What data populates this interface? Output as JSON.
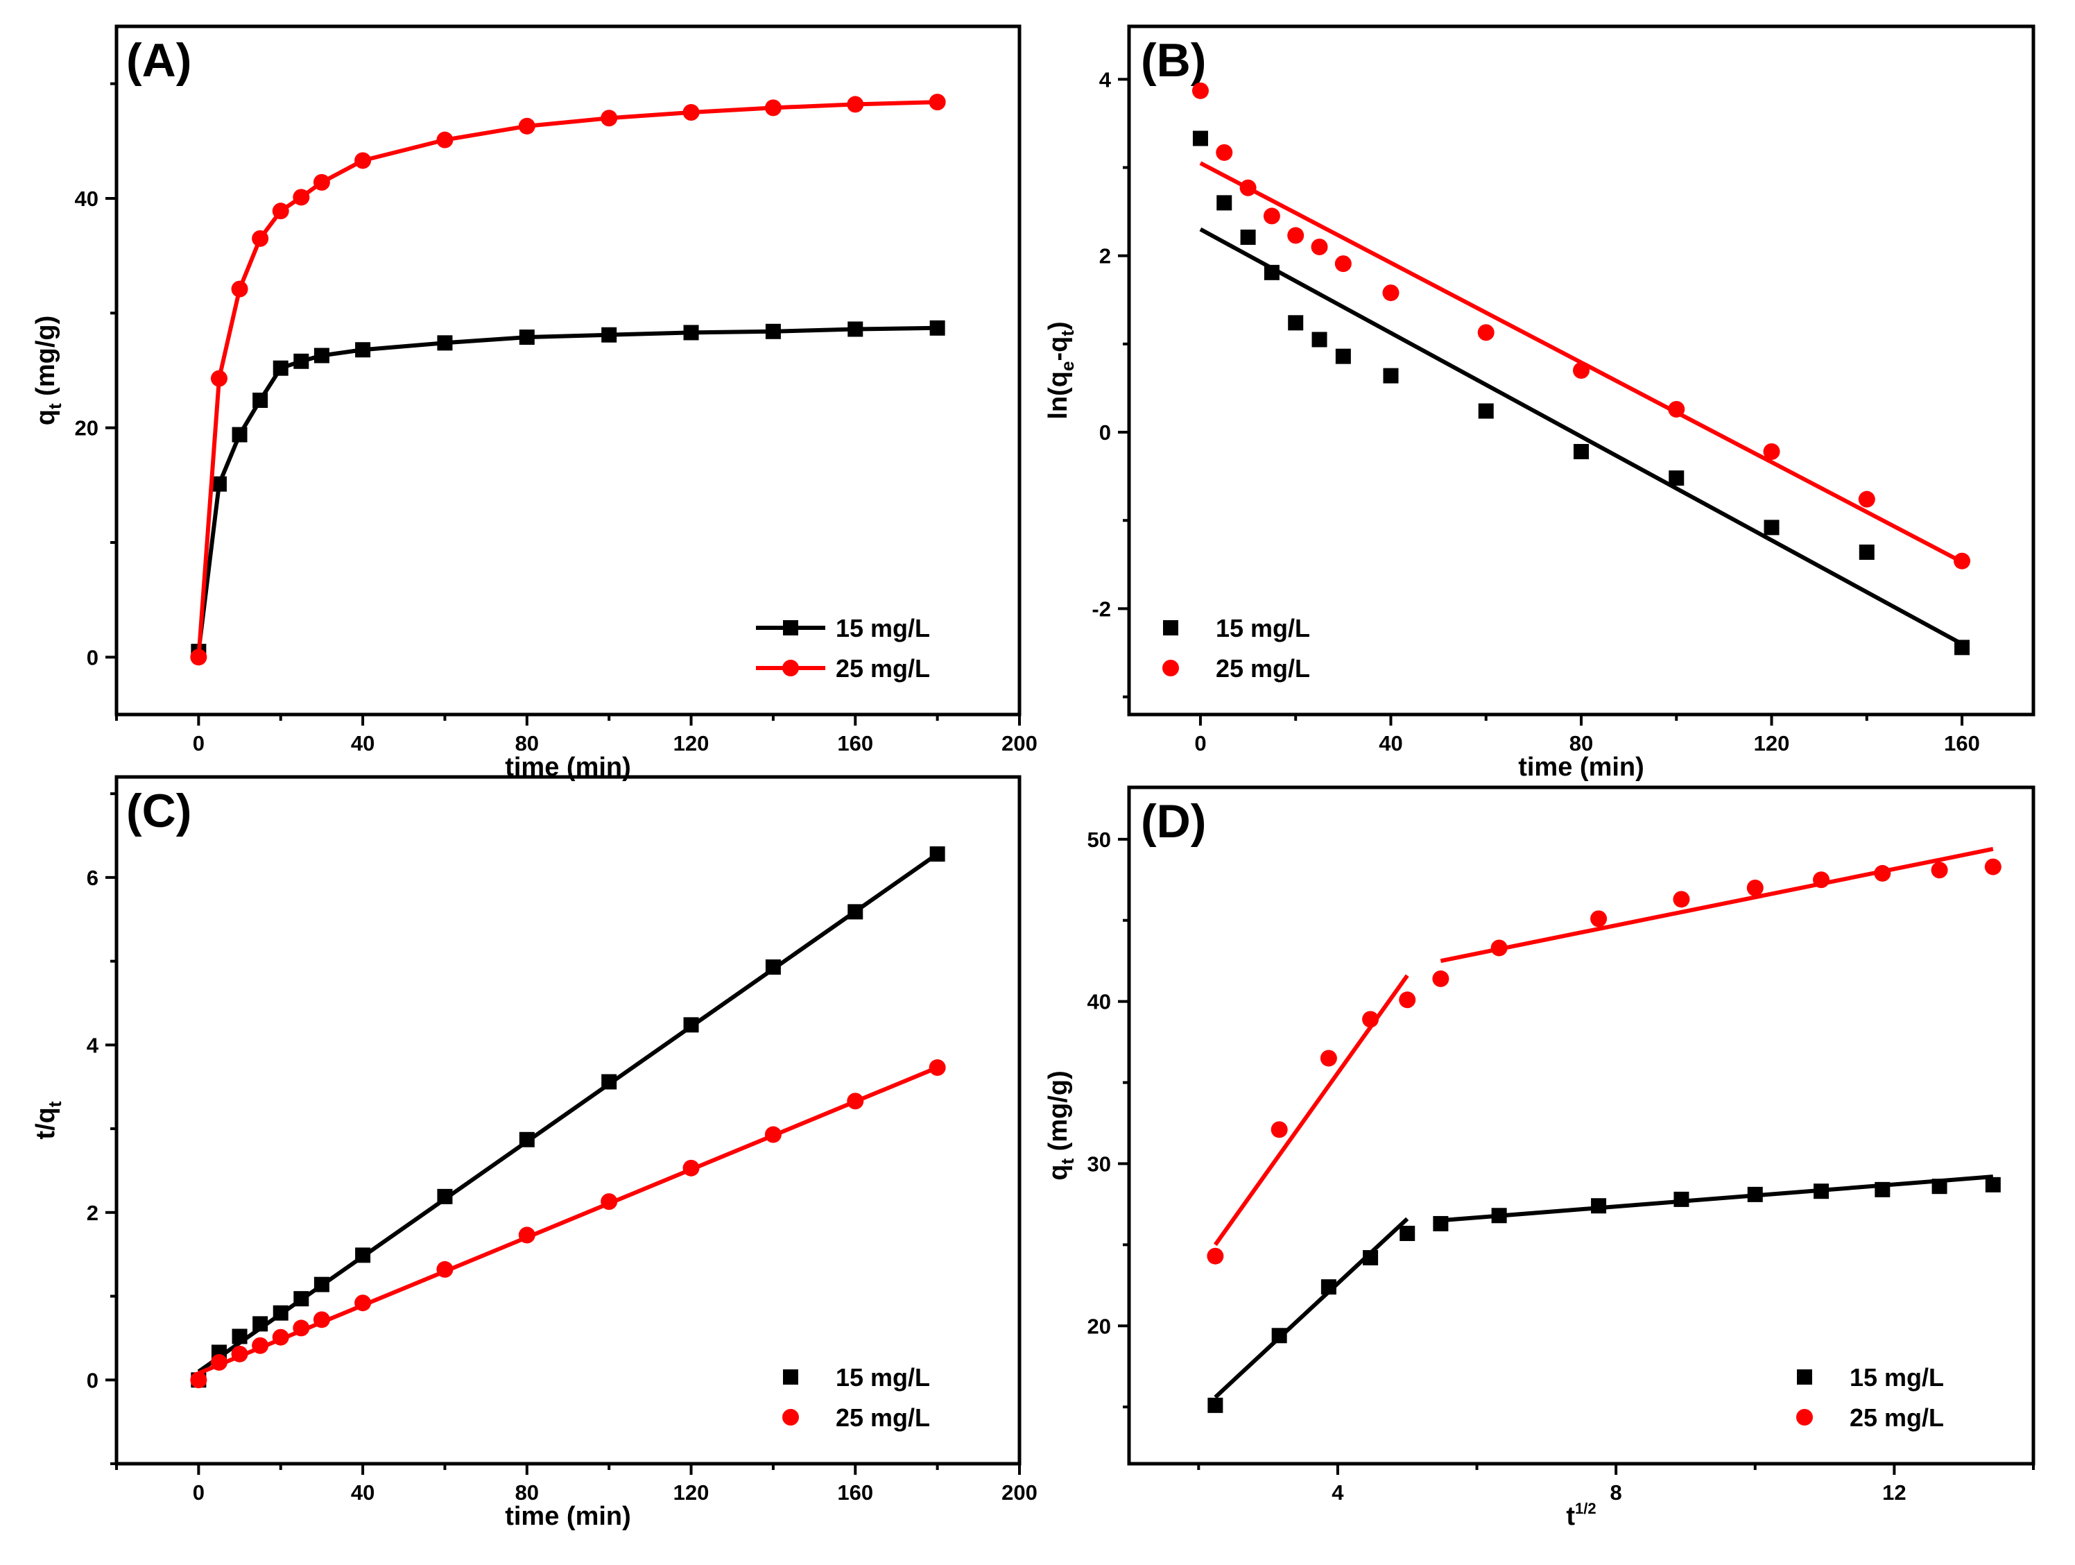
{
  "colors": {
    "s15": "#000000",
    "s25": "#ff0000"
  },
  "chart_data": [
    {
      "type": "line",
      "panel_label": "(A)",
      "xlabel": "time (min)",
      "ylabel_main": "q",
      "ylabel_sub": "t",
      "ylabel_tail": " (mg/g)",
      "xlim": [
        -20,
        200
      ],
      "ylim": [
        -5,
        55
      ],
      "xticks": [
        "0",
        "40",
        "80",
        "120",
        "160",
        "200"
      ],
      "xtick_values": [
        0,
        40,
        80,
        120,
        160,
        200
      ],
      "yticks": [
        "0",
        "20",
        "40"
      ],
      "ytick_values": [
        0,
        20,
        40
      ],
      "legend_position": "bottom-right",
      "legend_style": "line-marker",
      "series": [
        {
          "name": "15 mg/L",
          "x": [
            0,
            5,
            10,
            15,
            20,
            25,
            30,
            40,
            60,
            80,
            100,
            120,
            140,
            160,
            180
          ],
          "y": [
            0.5,
            15.1,
            19.4,
            22.4,
            25.2,
            25.8,
            26.3,
            26.8,
            27.4,
            27.9,
            28.1,
            28.3,
            28.4,
            28.6,
            28.7
          ]
        },
        {
          "name": "25 mg/L",
          "x": [
            0,
            5,
            10,
            15,
            20,
            25,
            30,
            40,
            60,
            80,
            100,
            120,
            140,
            160,
            180
          ],
          "y": [
            0.0,
            24.3,
            32.1,
            36.5,
            38.9,
            40.1,
            41.4,
            43.3,
            45.1,
            46.3,
            47.0,
            47.5,
            47.9,
            48.2,
            48.4
          ]
        }
      ]
    },
    {
      "type": "scatter",
      "panel_label": "(B)",
      "xlabel": "time (min)",
      "ylabel_parts": [
        "ln(q",
        "e",
        "-q",
        "t",
        ")"
      ],
      "xlim": [
        -15,
        175
      ],
      "ylim": [
        -3.2,
        4.6
      ],
      "xticks": [
        "0",
        "40",
        "80",
        "120",
        "160"
      ],
      "xtick_values": [
        0,
        40,
        80,
        120,
        160
      ],
      "yticks": [
        "-2",
        "0",
        "2",
        "4"
      ],
      "ytick_values": [
        -2,
        0,
        2,
        4
      ],
      "legend_position": "bottom-left",
      "legend_style": "marker",
      "series": [
        {
          "name": "15 mg/L",
          "x": [
            0,
            5,
            10,
            15,
            20,
            25,
            30,
            40,
            60,
            80,
            100,
            120,
            140,
            160
          ],
          "y": [
            3.33,
            2.6,
            2.21,
            1.81,
            1.24,
            1.05,
            0.86,
            0.64,
            0.24,
            -0.22,
            -0.52,
            -1.08,
            -1.36,
            -2.44
          ],
          "fit": [
            [
              0,
              2.3
            ],
            [
              160,
              -2.4
            ]
          ]
        },
        {
          "name": "25 mg/L",
          "x": [
            0,
            5,
            10,
            15,
            20,
            25,
            30,
            40,
            60,
            80,
            100,
            120,
            140,
            160
          ],
          "y": [
            3.87,
            3.17,
            2.77,
            2.45,
            2.23,
            2.1,
            1.91,
            1.58,
            1.13,
            0.7,
            0.26,
            -0.22,
            -0.76,
            -1.46
          ],
          "fit": [
            [
              0,
              3.05
            ],
            [
              160,
              -1.47
            ]
          ]
        }
      ]
    },
    {
      "type": "scatter",
      "panel_label": "(C)",
      "xlabel": "time (min)",
      "ylabel_main": "t/q",
      "ylabel_sub": "t",
      "xlim": [
        -20,
        200
      ],
      "ylim": [
        -1,
        7.2
      ],
      "xticks": [
        "0",
        "40",
        "80",
        "120",
        "160",
        "200"
      ],
      "xtick_values": [
        0,
        40,
        80,
        120,
        160,
        200
      ],
      "yticks": [
        "0",
        "2",
        "4",
        "6"
      ],
      "ytick_values": [
        0,
        2,
        4,
        6
      ],
      "legend_position": "bottom-right",
      "legend_style": "marker",
      "series": [
        {
          "name": "15 mg/L",
          "x": [
            0,
            5,
            10,
            15,
            20,
            25,
            30,
            40,
            60,
            80,
            100,
            120,
            140,
            160,
            180
          ],
          "y": [
            0.0,
            0.33,
            0.52,
            0.67,
            0.8,
            0.97,
            1.14,
            1.49,
            2.19,
            2.87,
            3.56,
            4.24,
            4.93,
            5.59,
            6.28
          ],
          "fit": [
            [
              0,
              0.1
            ],
            [
              180,
              6.28
            ]
          ]
        },
        {
          "name": "25 mg/L",
          "x": [
            0,
            5,
            10,
            15,
            20,
            25,
            30,
            40,
            60,
            80,
            100,
            120,
            140,
            160,
            180
          ],
          "y": [
            0.0,
            0.21,
            0.31,
            0.41,
            0.51,
            0.62,
            0.72,
            0.92,
            1.32,
            1.73,
            2.13,
            2.53,
            2.93,
            3.33,
            3.73
          ],
          "fit": [
            [
              0,
              0.08
            ],
            [
              180,
              3.73
            ]
          ]
        }
      ]
    },
    {
      "type": "scatter",
      "panel_label": "(D)",
      "xlabel_main": "t",
      "xlabel_sup": "1/2",
      "ylabel_main": "q",
      "ylabel_sub": "t",
      "ylabel_tail": " (mg/g)",
      "xlim": [
        1.0,
        14.0
      ],
      "ylim": [
        11.5,
        53.2
      ],
      "xticks": [
        "4",
        "8",
        "12"
      ],
      "xtick_values": [
        4,
        8,
        12
      ],
      "yticks": [
        "20",
        "30",
        "40",
        "50"
      ],
      "ytick_values": [
        20,
        30,
        40,
        50
      ],
      "legend_position": "bottom-right",
      "legend_style": "marker",
      "series": [
        {
          "name": "15 mg/L",
          "x": [
            2.24,
            3.16,
            3.87,
            4.47,
            5.0,
            5.48,
            6.32,
            7.75,
            8.94,
            10.0,
            10.95,
            11.83,
            12.65,
            13.42
          ],
          "y": [
            15.1,
            19.4,
            22.4,
            24.2,
            25.7,
            26.3,
            26.8,
            27.4,
            27.8,
            28.1,
            28.3,
            28.4,
            28.6,
            28.7
          ],
          "fit_segments": [
            [
              [
                2.24,
                15.6
              ],
              [
                5.0,
                26.6
              ]
            ],
            [
              [
                5.48,
                26.5
              ],
              [
                13.42,
                29.2
              ]
            ]
          ]
        },
        {
          "name": "25 mg/L",
          "x": [
            2.24,
            3.16,
            3.87,
            4.47,
            5.0,
            5.48,
            6.32,
            7.75,
            8.94,
            10.0,
            10.95,
            11.83,
            12.65,
            13.42
          ],
          "y": [
            24.3,
            32.1,
            36.5,
            38.9,
            40.1,
            41.4,
            43.3,
            45.1,
            46.3,
            47.0,
            47.5,
            47.9,
            48.1,
            48.3
          ],
          "fit_segments": [
            [
              [
                2.24,
                25.0
              ],
              [
                5.0,
                41.6
              ]
            ],
            [
              [
                5.48,
                42.5
              ],
              [
                13.42,
                49.4
              ]
            ]
          ]
        }
      ]
    }
  ]
}
